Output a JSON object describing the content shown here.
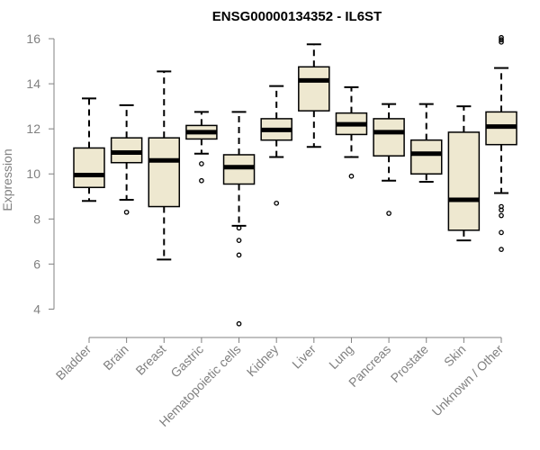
{
  "chart_data": {
    "type": "boxplot",
    "title": "ENSG00000134352 - IL6ST",
    "xlabel": "",
    "ylabel": "Expression",
    "ylim": [
      3.1,
      16.4
    ],
    "yticks": [
      4,
      6,
      8,
      10,
      12,
      14,
      16
    ],
    "grid": false,
    "box_fill": "#EEE8D0",
    "categories": [
      "Bladder",
      "Brain",
      "Breast",
      "Gastric",
      "Hematopoietic cells",
      "Kidney",
      "Liver",
      "Lung",
      "Pancreas",
      "Prostate",
      "Skin",
      "Unknown / Other"
    ],
    "boxes": [
      {
        "category": "Bladder",
        "min": 8.8,
        "q1": 9.4,
        "median": 9.95,
        "q3": 11.15,
        "max": 13.35,
        "outliers": []
      },
      {
        "category": "Brain",
        "min": 8.85,
        "q1": 10.5,
        "median": 10.95,
        "q3": 11.6,
        "max": 13.05,
        "outliers": [
          8.3
        ]
      },
      {
        "category": "Breast",
        "min": 6.2,
        "q1": 8.55,
        "median": 10.6,
        "q3": 11.6,
        "max": 14.55,
        "outliers": []
      },
      {
        "category": "Gastric",
        "min": 10.9,
        "q1": 11.55,
        "median": 11.85,
        "q3": 12.15,
        "max": 12.75,
        "outliers": [
          10.45,
          9.7
        ]
      },
      {
        "category": "Hematopoietic cells",
        "min": 7.7,
        "q1": 9.55,
        "median": 10.3,
        "q3": 10.85,
        "max": 12.75,
        "outliers": [
          7.6,
          7.05,
          6.4,
          3.35
        ]
      },
      {
        "category": "Kidney",
        "min": 10.75,
        "q1": 11.5,
        "median": 11.95,
        "q3": 12.45,
        "max": 13.9,
        "outliers": [
          8.7
        ]
      },
      {
        "category": "Liver",
        "min": 11.2,
        "q1": 12.8,
        "median": 14.15,
        "q3": 14.75,
        "max": 15.75,
        "outliers": []
      },
      {
        "category": "Lung",
        "min": 10.75,
        "q1": 11.75,
        "median": 12.2,
        "q3": 12.7,
        "max": 13.85,
        "outliers": [
          9.9
        ]
      },
      {
        "category": "Pancreas",
        "min": 9.7,
        "q1": 10.8,
        "median": 11.85,
        "q3": 12.45,
        "max": 13.1,
        "outliers": [
          8.25
        ]
      },
      {
        "category": "Prostate",
        "min": 9.65,
        "q1": 10.0,
        "median": 10.9,
        "q3": 11.5,
        "max": 13.1,
        "outliers": []
      },
      {
        "category": "Skin",
        "min": 7.05,
        "q1": 7.5,
        "median": 8.85,
        "q3": 11.85,
        "max": 13.0,
        "outliers": []
      },
      {
        "category": "Unknown / Other",
        "min": 9.15,
        "q1": 11.3,
        "median": 12.1,
        "q3": 12.75,
        "max": 14.7,
        "outliers": [
          16.05,
          15.95,
          15.85,
          8.55,
          8.4,
          8.15,
          7.4,
          6.65
        ]
      }
    ]
  }
}
